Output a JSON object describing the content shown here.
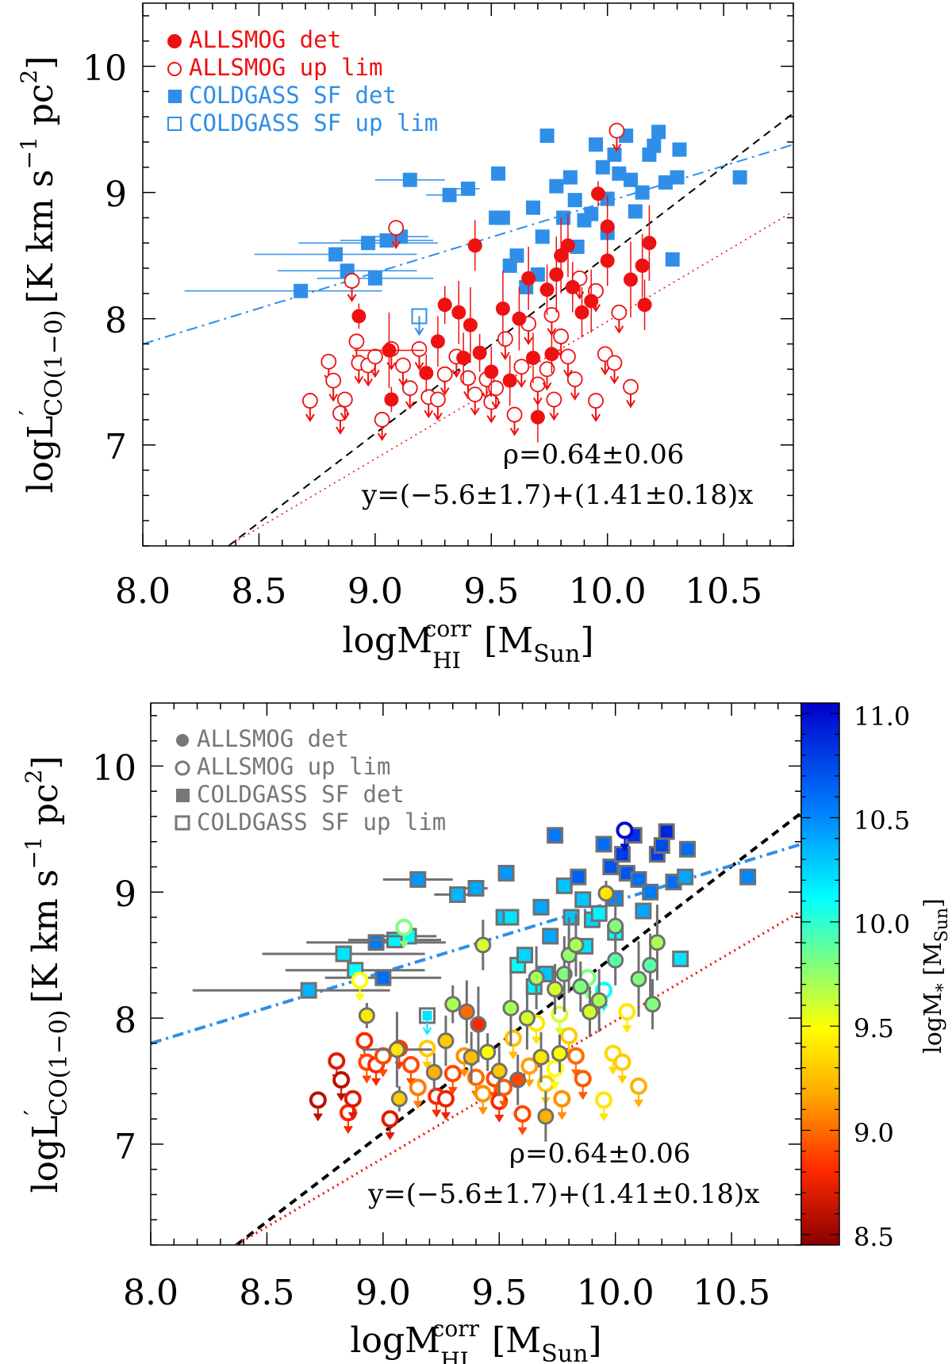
{
  "chart_data": [
    {
      "type": "scatter",
      "panel": "top",
      "xlabel": "logM",
      "xlabel_sup": "corr",
      "xlabel_sub": "HI",
      "xlabel_unit": "[M",
      "xlabel_unit_sub": "Sun",
      "xlabel_unit_close": "]",
      "ylabel_main": "logL",
      "ylabel_prime": "′",
      "ylabel_sub": "CO(1−0)",
      "ylabel_unit": "[K km s",
      "ylabel_sup": "−1",
      "ylabel_unit2": " pc",
      "ylabel_sup2": "2",
      "ylabel_close": "]",
      "xlim": [
        8.0,
        10.8
      ],
      "ylim": [
        6.2,
        10.5
      ],
      "xticks": [
        "8.0",
        "8.5",
        "9.0",
        "9.5",
        "10.0",
        "10.5"
      ],
      "yticks": [
        "7",
        "8",
        "9",
        "10"
      ],
      "legend": [
        {
          "label": "ALLSMOG det",
          "marker": "filled-circle",
          "color": "#ee1111"
        },
        {
          "label": "ALLSMOG up lim",
          "marker": "open-circle",
          "color": "#ee1111"
        },
        {
          "label": "COLDGASS SF det",
          "marker": "filled-square",
          "color": "#2f8fe8"
        },
        {
          "label": "COLDGASS SF up lim",
          "marker": "open-square",
          "color": "#2f8fe8"
        }
      ],
      "annotation_rho": "ρ=0.64±0.06",
      "annotation_fit": "y=(−5.6±1.7)+(1.41±0.18)x",
      "fit_line": {
        "style": "dashed",
        "color": "#000000",
        "intercept": -5.6,
        "slope": 1.41
      },
      "coldgass_line": {
        "style": "dash-dot",
        "color": "#2f8fe8",
        "points": [
          [
            8.0,
            7.8
          ],
          [
            10.8,
            9.38
          ]
        ]
      },
      "reference_line": {
        "style": "dotted",
        "color": "#ee1111",
        "points": [
          [
            8.0,
            5.8
          ],
          [
            10.8,
            8.85
          ]
        ]
      }
    },
    {
      "type": "scatter",
      "panel": "bottom",
      "xlabel": "logM",
      "xlabel_sup": "corr",
      "xlabel_sub": "HI",
      "xlabel_unit": "[M",
      "xlabel_unit_sub": "Sun",
      "xlabel_unit_close": "]",
      "ylabel_main": "logL",
      "ylabel_prime": "′",
      "ylabel_sub": "CO(1−0)",
      "ylabel_unit": "[K km s",
      "ylabel_sup": "−1",
      "ylabel_unit2": " pc",
      "ylabel_sup2": "2",
      "ylabel_close": "]",
      "xlim": [
        8.0,
        10.8
      ],
      "ylim": [
        6.2,
        10.5
      ],
      "xticks": [
        "8.0",
        "8.5",
        "9.0",
        "9.5",
        "10.0",
        "10.5"
      ],
      "yticks": [
        "7",
        "8",
        "9",
        "10"
      ],
      "legend": [
        {
          "label": "ALLSMOG det",
          "marker": "filled-circle",
          "color": "#777777"
        },
        {
          "label": "ALLSMOG up lim",
          "marker": "open-circle",
          "color": "#777777"
        },
        {
          "label": "COLDGASS SF det",
          "marker": "filled-square",
          "color": "#777777"
        },
        {
          "label": "COLDGASS SF up lim",
          "marker": "open-square",
          "color": "#777777"
        }
      ],
      "annotation_rho": "ρ=0.64±0.06",
      "annotation_fit": "y=(−5.6±1.7)+(1.41±0.18)x",
      "colorbar": {
        "label_main": "logM",
        "label_sub": "*",
        "label_unit": " [M",
        "label_unit_sub": "Sun",
        "label_close": "]",
        "range": [
          8.45,
          11.05
        ],
        "ticks": [
          "8.5",
          "9.0",
          "9.5",
          "10.0",
          "10.5",
          "11.0"
        ],
        "colormap": [
          "#8b0000",
          "#ff2a00",
          "#ffaa00",
          "#ffff00",
          "#7fff7f",
          "#00ffff",
          "#007fff",
          "#0000cc"
        ]
      },
      "fit_line": {
        "style": "dashed",
        "color": "#000000",
        "intercept": -5.6,
        "slope": 1.41
      },
      "coldgass_line": {
        "style": "dash-dot",
        "color": "#2f8fe8",
        "points": [
          [
            8.0,
            7.8
          ],
          [
            10.8,
            9.38
          ]
        ]
      },
      "reference_line": {
        "style": "dotted",
        "color": "#ee1111",
        "points": [
          [
            8.0,
            5.8
          ],
          [
            10.8,
            8.85
          ]
        ]
      }
    }
  ],
  "series": {
    "coldgass_det": [
      {
        "x": 8.68,
        "y": 8.22,
        "xerr": 0.5,
        "m": 10.35
      },
      {
        "x": 8.83,
        "y": 8.51,
        "xerr": 0.35,
        "m": 10.2
      },
      {
        "x": 8.88,
        "y": 8.38,
        "xerr": 0.3,
        "m": 10.1
      },
      {
        "x": 9.0,
        "y": 8.32,
        "xerr": 0.25,
        "m": 10.6
      },
      {
        "x": 8.97,
        "y": 8.6,
        "xerr": 0.3,
        "m": 10.55
      },
      {
        "x": 9.05,
        "y": 8.62,
        "xerr": 0.2,
        "m": 10.15
      },
      {
        "x": 9.11,
        "y": 8.65,
        "xerr": 0.12,
        "m": 10.1
      },
      {
        "x": 9.15,
        "y": 9.1,
        "xerr": 0.15,
        "m": 10.45
      },
      {
        "x": 9.32,
        "y": 8.98,
        "xerr": 0.1,
        "m": 10.35
      },
      {
        "x": 9.4,
        "y": 9.03,
        "xerr": 0.05,
        "m": 10.4
      },
      {
        "x": 9.53,
        "y": 9.15,
        "m": 10.45
      },
      {
        "x": 9.52,
        "y": 8.8,
        "m": 10.3
      },
      {
        "x": 9.55,
        "y": 8.8,
        "m": 10.2
      },
      {
        "x": 9.58,
        "y": 8.42,
        "m": 10.1
      },
      {
        "x": 9.61,
        "y": 8.5,
        "m": 10.25
      },
      {
        "x": 9.65,
        "y": 8.25,
        "m": 10.15
      },
      {
        "x": 9.7,
        "y": 8.35,
        "m": 10.3
      },
      {
        "x": 9.72,
        "y": 8.65,
        "m": 10.4
      },
      {
        "x": 9.78,
        "y": 9.05,
        "m": 10.3
      },
      {
        "x": 9.74,
        "y": 9.45,
        "m": 10.55
      },
      {
        "x": 9.84,
        "y": 9.12,
        "m": 10.65
      },
      {
        "x": 9.86,
        "y": 8.94,
        "m": 10.3
      },
      {
        "x": 9.9,
        "y": 8.78,
        "m": 10.25
      },
      {
        "x": 9.95,
        "y": 9.38,
        "m": 10.6
      },
      {
        "x": 9.98,
        "y": 9.2,
        "m": 10.7
      },
      {
        "x": 10.0,
        "y": 8.95,
        "m": 10.5
      },
      {
        "x": 10.03,
        "y": 9.3,
        "m": 10.8
      },
      {
        "x": 10.05,
        "y": 9.15,
        "m": 10.7
      },
      {
        "x": 10.08,
        "y": 9.45,
        "m": 10.85
      },
      {
        "x": 10.1,
        "y": 9.1,
        "m": 10.6
      },
      {
        "x": 10.12,
        "y": 8.85,
        "m": 10.4
      },
      {
        "x": 10.15,
        "y": 9.0,
        "m": 10.55
      },
      {
        "x": 10.18,
        "y": 9.3,
        "m": 10.8
      },
      {
        "x": 10.2,
        "y": 9.37,
        "m": 10.75
      },
      {
        "x": 10.22,
        "y": 9.48,
        "m": 10.9
      },
      {
        "x": 10.25,
        "y": 9.08,
        "m": 10.6
      },
      {
        "x": 10.28,
        "y": 8.47,
        "m": 10.2
      },
      {
        "x": 10.31,
        "y": 9.34,
        "m": 10.6
      },
      {
        "x": 10.3,
        "y": 9.12,
        "m": 10.4
      },
      {
        "x": 10.57,
        "y": 9.12,
        "m": 10.5
      },
      {
        "x": 9.87,
        "y": 8.57,
        "m": 10.2
      },
      {
        "x": 9.81,
        "y": 8.8,
        "m": 10.3
      },
      {
        "x": 9.93,
        "y": 8.83,
        "m": 10.15
      },
      {
        "x": 9.68,
        "y": 8.88,
        "m": 10.4
      },
      {
        "x": 10.0,
        "y": 8.68,
        "m": 10.1
      }
    ],
    "coldgass_uplim": [
      {
        "x": 9.19,
        "y": 8.02,
        "m": 10.2
      }
    ],
    "allsmog_det": [
      {
        "x": 8.93,
        "y": 8.02,
        "yerr": 0.1,
        "m": 9.4
      },
      {
        "x": 9.06,
        "y": 7.75,
        "xerr": 0.15,
        "yerr": 0.3,
        "m": 9.4
      },
      {
        "x": 9.07,
        "y": 7.36,
        "yerr": 0.1,
        "m": 9.3
      },
      {
        "x": 9.22,
        "y": 7.57,
        "yerr": 0.15,
        "m": 9.2
      },
      {
        "x": 9.27,
        "y": 7.82,
        "yerr": 0.2,
        "m": 9.3
      },
      {
        "x": 9.3,
        "y": 8.11,
        "yerr": 0.15,
        "m": 9.7
      },
      {
        "x": 9.36,
        "y": 8.05,
        "yerr": 0.25,
        "m": 9.0
      },
      {
        "x": 9.38,
        "y": 7.69,
        "yerr": 0.2,
        "m": 9.25
      },
      {
        "x": 9.41,
        "y": 7.95,
        "yerr": 0.3,
        "m": 8.8
      },
      {
        "x": 9.43,
        "y": 8.58,
        "yerr": 0.2,
        "m": 9.6
      },
      {
        "x": 9.45,
        "y": 7.73,
        "yerr": 0.15,
        "m": 9.5
      },
      {
        "x": 9.5,
        "y": 7.58,
        "yerr": 0.2,
        "m": 9.3
      },
      {
        "x": 9.55,
        "y": 8.08,
        "yerr": 0.3,
        "m": 9.7
      },
      {
        "x": 9.58,
        "y": 7.51,
        "yerr": 0.2,
        "m": 8.9
      },
      {
        "x": 9.62,
        "y": 8.0,
        "yerr": 0.25,
        "m": 9.6
      },
      {
        "x": 9.66,
        "y": 8.32,
        "yerr": 0.25,
        "m": 9.7
      },
      {
        "x": 9.68,
        "y": 7.69,
        "yerr": 0.2,
        "m": 9.4
      },
      {
        "x": 9.7,
        "y": 7.22,
        "yerr": 0.2,
        "m": 9.2
      },
      {
        "x": 9.74,
        "y": 8.23,
        "yerr": 0.2,
        "m": 9.6
      },
      {
        "x": 9.76,
        "y": 7.72,
        "yerr": 0.15,
        "m": 9.5
      },
      {
        "x": 9.78,
        "y": 8.35,
        "yerr": 0.3,
        "m": 9.8
      },
      {
        "x": 9.8,
        "y": 8.5,
        "yerr": 0.3,
        "m": 9.75
      },
      {
        "x": 9.83,
        "y": 8.58,
        "yerr": 0.25,
        "m": 9.7
      },
      {
        "x": 9.85,
        "y": 8.25,
        "yerr": 0.2,
        "m": 9.8
      },
      {
        "x": 9.89,
        "y": 8.05,
        "yerr": 0.2,
        "m": 9.6
      },
      {
        "x": 9.93,
        "y": 8.14,
        "yerr": 0.25,
        "m": 9.7
      },
      {
        "x": 9.96,
        "y": 8.99,
        "yerr": 0.1,
        "m": 9.4
      },
      {
        "x": 10.0,
        "y": 8.73,
        "yerr": 0.25,
        "m": 9.8
      },
      {
        "x": 10.0,
        "y": 8.46,
        "yerr": 0.2,
        "m": 9.9
      },
      {
        "x": 10.1,
        "y": 8.31,
        "yerr": 0.3,
        "m": 9.8
      },
      {
        "x": 10.15,
        "y": 8.42,
        "yerr": 0.25,
        "m": 9.9
      },
      {
        "x": 10.18,
        "y": 8.6,
        "yerr": 0.3,
        "m": 9.7
      },
      {
        "x": 10.16,
        "y": 8.11,
        "yerr": 0.2,
        "m": 9.8
      }
    ],
    "allsmog_uplim": [
      {
        "x": 8.72,
        "y": 7.35,
        "m": 8.6
      },
      {
        "x": 8.8,
        "y": 7.66,
        "m": 8.7
      },
      {
        "x": 8.82,
        "y": 7.51,
        "m": 8.6
      },
      {
        "x": 8.85,
        "y": 7.25,
        "m": 8.8
      },
      {
        "x": 8.87,
        "y": 7.36,
        "m": 8.7
      },
      {
        "x": 8.9,
        "y": 8.3,
        "m": 9.5
      },
      {
        "x": 8.92,
        "y": 7.82,
        "m": 8.8
      },
      {
        "x": 8.93,
        "y": 7.65,
        "m": 8.9
      },
      {
        "x": 8.97,
        "y": 7.63,
        "m": 8.8
      },
      {
        "x": 9.0,
        "y": 7.7,
        "m": 8.9
      },
      {
        "x": 9.03,
        "y": 7.2,
        "m": 8.7
      },
      {
        "x": 9.07,
        "y": 7.76,
        "m": 8.85
      },
      {
        "x": 9.09,
        "y": 8.72,
        "m": 9.8
      },
      {
        "x": 9.12,
        "y": 7.63,
        "m": 8.9
      },
      {
        "x": 9.15,
        "y": 7.45,
        "m": 9.05
      },
      {
        "x": 9.19,
        "y": 7.76,
        "m": 9.3
      },
      {
        "x": 9.23,
        "y": 7.38,
        "m": 8.8
      },
      {
        "x": 9.27,
        "y": 7.36,
        "m": 8.75
      },
      {
        "x": 9.3,
        "y": 7.56,
        "m": 8.9
      },
      {
        "x": 9.35,
        "y": 7.7,
        "m": 9.1
      },
      {
        "x": 9.4,
        "y": 7.53,
        "m": 9.0
      },
      {
        "x": 9.43,
        "y": 7.4,
        "m": 9.1
      },
      {
        "x": 9.48,
        "y": 7.52,
        "m": 8.9
      },
      {
        "x": 9.5,
        "y": 7.34,
        "m": 8.8
      },
      {
        "x": 9.52,
        "y": 7.45,
        "m": 8.95
      },
      {
        "x": 9.56,
        "y": 7.84,
        "m": 9.25
      },
      {
        "x": 9.6,
        "y": 7.24,
        "m": 8.9
      },
      {
        "x": 9.63,
        "y": 7.62,
        "m": 9.15
      },
      {
        "x": 9.66,
        "y": 7.96,
        "m": 9.4
      },
      {
        "x": 9.7,
        "y": 7.48,
        "m": 9.3
      },
      {
        "x": 9.74,
        "y": 7.6,
        "m": 9.5
      },
      {
        "x": 9.77,
        "y": 7.36,
        "m": 9.1
      },
      {
        "x": 9.8,
        "y": 7.86,
        "m": 9.3
      },
      {
        "x": 9.83,
        "y": 7.7,
        "m": 9.0
      },
      {
        "x": 9.86,
        "y": 7.52,
        "m": 8.95
      },
      {
        "x": 9.95,
        "y": 7.35,
        "m": 9.4
      },
      {
        "x": 9.99,
        "y": 7.72,
        "m": 9.35
      },
      {
        "x": 10.03,
        "y": 7.65,
        "m": 9.3
      },
      {
        "x": 10.05,
        "y": 8.05,
        "m": 9.4
      },
      {
        "x": 10.1,
        "y": 7.46,
        "m": 9.2
      },
      {
        "x": 9.95,
        "y": 8.22,
        "m": 10.1
      },
      {
        "x": 9.88,
        "y": 8.32,
        "m": 9.8
      },
      {
        "x": 10.04,
        "y": 9.49,
        "m": 11.0
      },
      {
        "x": 9.76,
        "y": 8.03,
        "m": 9.6
      }
    ]
  }
}
